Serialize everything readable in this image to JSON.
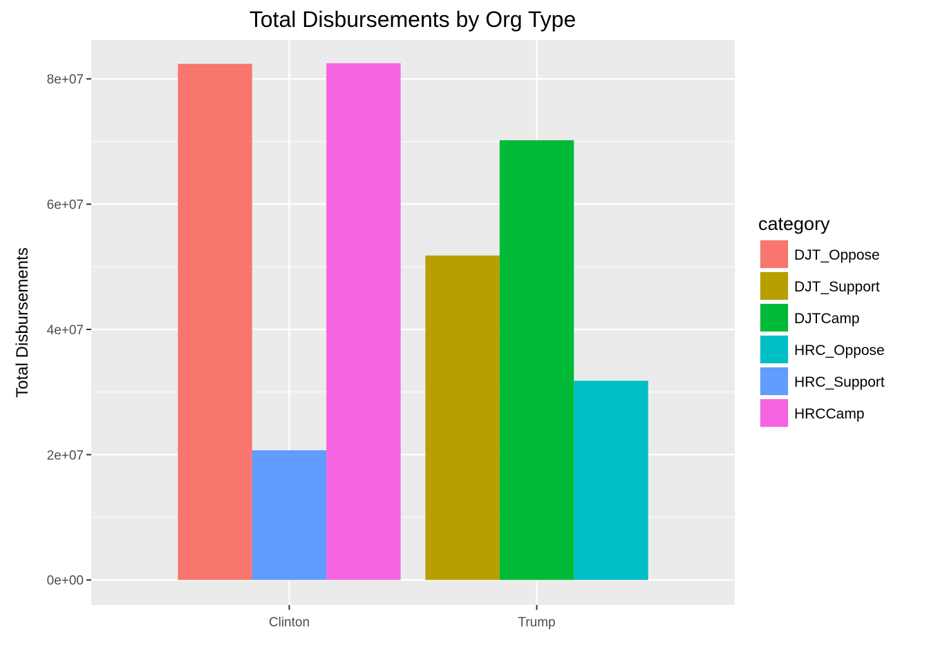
{
  "chart_data": {
    "type": "bar",
    "title": "Total Disbursements by Org Type",
    "xlabel": "",
    "ylabel": "Total Disbursements",
    "ylim": [
      -4000000,
      86200000
    ],
    "yticks": [
      {
        "value": 0,
        "label": "0e+00"
      },
      {
        "value": 20000000,
        "label": "2e+07"
      },
      {
        "value": 40000000,
        "label": "4e+07"
      },
      {
        "value": 60000000,
        "label": "6e+07"
      },
      {
        "value": 80000000,
        "label": "8e+07"
      }
    ],
    "categories": [
      "Clinton",
      "Trump"
    ],
    "grid": true,
    "legend": {
      "title": "category",
      "position": "right"
    },
    "series": [
      {
        "name": "DJT_Oppose",
        "color": "#F8766D",
        "values": [
          82400000,
          null
        ]
      },
      {
        "name": "DJT_Support",
        "color": "#B79F00",
        "values": [
          null,
          51800000
        ]
      },
      {
        "name": "DJTCamp",
        "color": "#00BA38",
        "values": [
          null,
          70200000
        ]
      },
      {
        "name": "HRC_Oppose",
        "color": "#00BFC4",
        "values": [
          null,
          31800000
        ]
      },
      {
        "name": "HRC_Support",
        "color": "#619CFF",
        "values": [
          20700000,
          null
        ]
      },
      {
        "name": "HRCCamp",
        "color": "#F564E3",
        "values": [
          82500000,
          null
        ]
      }
    ]
  }
}
